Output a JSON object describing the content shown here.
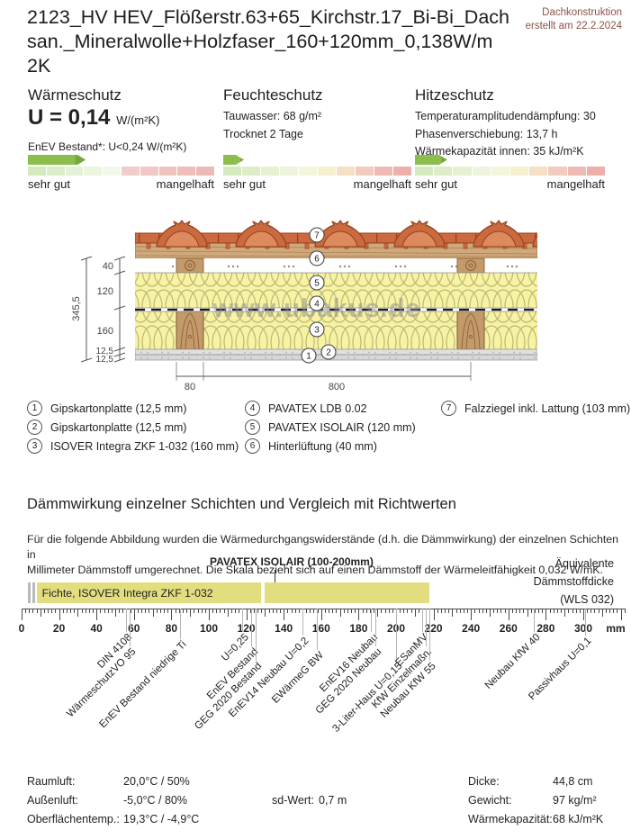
{
  "header": {
    "title": "2123_HV HEV_Flößerstr.63+65_Kirchstr.17_Bi-Bi_Dach\nsan._Mineralwolle+Holzfaser_160+120mm_0,138W/m\n2K",
    "doc_type": "Dachkonstruktion",
    "created": "erstellt am 22.2.2024"
  },
  "panels": [
    {
      "heading": "Wärmeschutz",
      "big_value": "U = 0,14",
      "big_unit": "W/(m²K)",
      "lines": [
        "EnEV Bestand*: U<0,24 W/(m²K)"
      ],
      "arrow_percent": 31,
      "arrow_color": "#8cbe4e",
      "scale_left": "sehr gut",
      "scale_right": "mangelhaft",
      "segment_colors": [
        "#d5e9bf",
        "#dcedca",
        "#e4f1d5",
        "#ecf5e0",
        "#f3f8ec",
        "#f1cdca",
        "#f0c8c5",
        "#efc3c0",
        "#eebebb",
        "#edb9b6"
      ]
    },
    {
      "heading": "Feuchteschutz",
      "lines": [
        "Tauwasser: 68 g/m²",
        "Trocknet 2 Tage"
      ],
      "arrow_percent": 11,
      "arrow_color": "#8cbe4e",
      "scale_left": "sehr gut",
      "scale_right": "mangelhaft",
      "segment_colors": [
        "#d5e9bf",
        "#ddedc8",
        "#e6f1d2",
        "#eef5dc",
        "#f4f6dc",
        "#f7f0d0",
        "#f5e0c6",
        "#f1cbbf",
        "#eebab4",
        "#ecb0aa"
      ]
    },
    {
      "heading": "Hitzeschutz",
      "lines": [
        "Temperaturamplitudendämpfung: 30",
        "Phasenverschiebung: 13,7 h",
        "Wärmekapazität innen: 35 kJ/m²K"
      ],
      "arrow_percent": 17,
      "arrow_color": "#8cbe4e",
      "scale_left": "sehr gut",
      "scale_right": "mangelhaft",
      "segment_colors": [
        "#d5e9bf",
        "#ddedc8",
        "#e6f1d2",
        "#eef5dc",
        "#f4f6dc",
        "#f7f0d0",
        "#f5e0c6",
        "#f1cbbf",
        "#eebab4",
        "#ecb0aa"
      ]
    }
  ],
  "diagram": {
    "watermark": "www.ubakus.de",
    "dims_left": {
      "total": "345,5",
      "segments": [
        "40",
        "120",
        "160",
        "12,5",
        "12,5"
      ]
    },
    "dims_bottom": [
      "80",
      "800"
    ],
    "callouts": [
      "1",
      "2",
      "3",
      "4",
      "5",
      "6",
      "7"
    ],
    "colors": {
      "insulation": "#f7f3a3",
      "wood": "#c49a6a",
      "tile": "#c96a3f",
      "gypsum": "#dedede"
    }
  },
  "legend": {
    "columns": [
      [
        {
          "n": "1",
          "text": "Gipskartonplatte (12,5 mm)"
        },
        {
          "n": "2",
          "text": "Gipskartonplatte (12,5 mm)"
        },
        {
          "n": "3",
          "text": "ISOVER Integra ZKF 1-032 (160 mm)"
        }
      ],
      [
        {
          "n": "4",
          "text": "PAVATEX LDB 0.02"
        },
        {
          "n": "5",
          "text": "PAVATEX ISOLAIR (120 mm)"
        },
        {
          "n": "6",
          "text": "Hinterlüftung (40 mm)"
        }
      ],
      [
        {
          "n": "7",
          "text": "Falzziegel inkl. Lattung (103 mm)"
        }
      ]
    ]
  },
  "daemmwirkung": {
    "heading": "Dämmwirkung einzelner Schichten und Vergleich mit Richtwerten",
    "paragraph": "Für die folgende Abbildung wurden die Wärmedurchgangswiderstände (d.h. die Dämmwirkung) der einzelnen Schichten in\nMillimeter Dämmstoff umgerechnet. Die Skala bezieht sich auf einen Dämmstoff der Wärmeleitfähigkeit 0,032 W/mK."
  },
  "chart_data": {
    "type": "bar",
    "title": "Äquivalente Dämmstoffdicke (WLS 032)",
    "right_label": "Äquivalente\nDämmstoffdicke\n(WLS 032)",
    "axis": {
      "unit": "mm",
      "min": 0,
      "max": 322,
      "tick_step": 20,
      "tick_labels": [
        0,
        20,
        40,
        60,
        80,
        100,
        120,
        140,
        160,
        180,
        200,
        220,
        240,
        260,
        280,
        300
      ]
    },
    "callout": {
      "text": "PAVATEX ISOLAIR (100-200mm)",
      "at_mm": 135
    },
    "bar_segments": [
      {
        "label": "",
        "from_mm": 3.4,
        "to_mm": 4.9,
        "color": "#b9b9b9"
      },
      {
        "label": "",
        "from_mm": 5.6,
        "to_mm": 7.1,
        "color": "#b9b9b9"
      },
      {
        "label": "Fichte, ISOVER Integra ZKF 1-032",
        "from_mm": 8,
        "to_mm": 128,
        "color": "#e2de7f"
      },
      {
        "label": "",
        "from_mm": 130,
        "to_mm": 218,
        "color": "#e2de7f"
      }
    ],
    "markers": [
      {
        "label": "DIN 4108",
        "mm": 56,
        "drop": 26
      },
      {
        "label": "WärmeschutzVO 95",
        "mm": 58,
        "drop": 42
      },
      {
        "label": "EnEV Bestand niedrige Ti",
        "mm": 85,
        "drop": 34
      },
      {
        "label": "U=0,25",
        "mm": 118,
        "drop": 26
      },
      {
        "label": "EnEV Bestand",
        "mm": 123,
        "drop": 42
      },
      {
        "label": "GEG 2020 Bestand",
        "mm": 125,
        "drop": 58
      },
      {
        "label": "EnEV14 Neubau U=0,2",
        "mm": 150,
        "drop": 30
      },
      {
        "label": "EWärmeG BW",
        "mm": 158,
        "drop": 46
      },
      {
        "label": "EnEV16 Neubau",
        "mm": 187,
        "drop": 26
      },
      {
        "label": "GEG 2020 Neubau",
        "mm": 189,
        "drop": 42
      },
      {
        "label": "3-Liter-Haus U=0,15",
        "mm": 200,
        "drop": 58
      },
      {
        "label": "ESanMV",
        "mm": 214,
        "drop": 26
      },
      {
        "label": "KfW Einzelmaßn.",
        "mm": 216,
        "drop": 42
      },
      {
        "label": "Neubau KfW 55",
        "mm": 218,
        "drop": 58
      },
      {
        "label": "Neubau KfW 40",
        "mm": 274,
        "drop": 26
      },
      {
        "label": "Passivhaus U=0,1",
        "mm": 301,
        "drop": 30
      }
    ]
  },
  "stats": {
    "left": [
      {
        "label": "Raumluft:",
        "value": "20,0°C / 50%"
      },
      {
        "label": "Außenluft:",
        "value": "-5,0°C / 80%"
      },
      {
        "label": "Oberflächentemp.:",
        "value": "19,3°C / -4,9°C"
      }
    ],
    "middle": [
      {
        "label": "sd-Wert:",
        "value": "0,7 m"
      }
    ],
    "right": [
      {
        "label": "Dicke:",
        "value": "44,8 cm"
      },
      {
        "label": "Gewicht:",
        "value": "97 kg/m²"
      },
      {
        "label": "Wärmekapazität:",
        "value": "68 kJ/m²K"
      }
    ]
  }
}
